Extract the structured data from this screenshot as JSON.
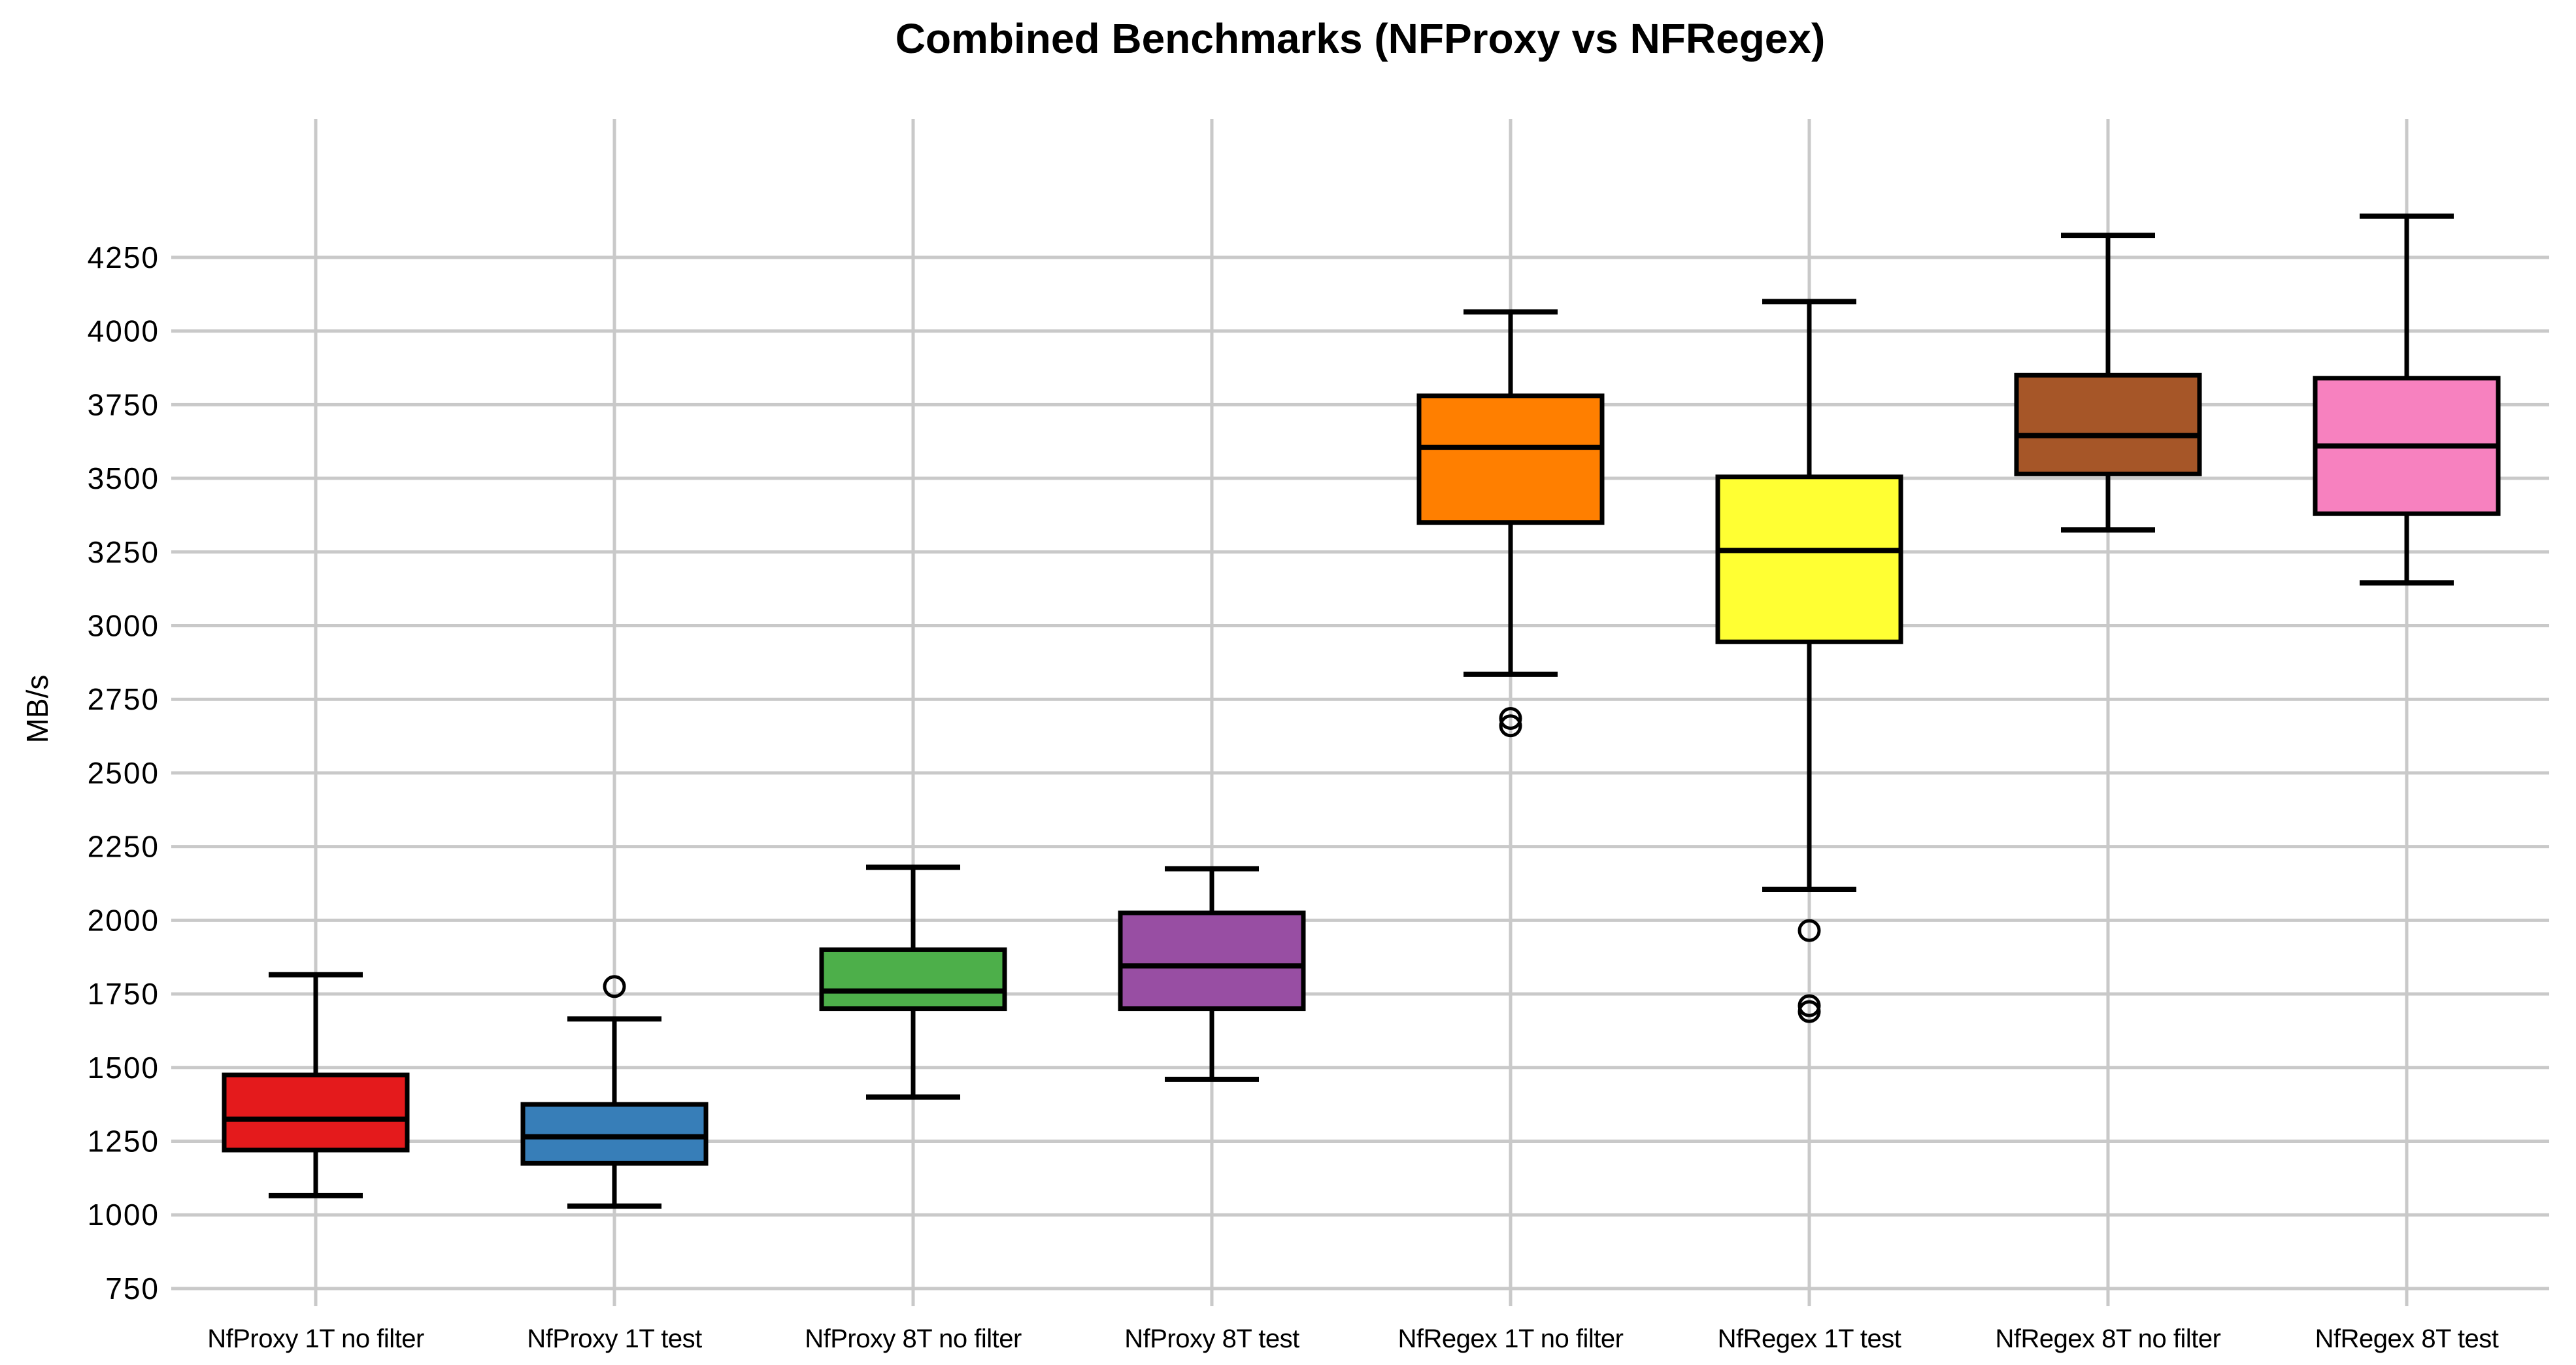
{
  "title": "Combined Benchmarks (NFProxy vs NFRegex)",
  "y_axis": {
    "label": "MB/s",
    "tick_labels": [
      "750",
      "1000",
      "1250",
      "1500",
      "1750",
      "2000",
      "2250",
      "2500",
      "2750",
      "3000",
      "3250",
      "3500",
      "3750",
      "4000",
      "4250"
    ]
  },
  "chart_data": {
    "type": "boxplot",
    "title": "Combined Benchmarks (NFProxy vs NFRegex)",
    "xlabel": "",
    "ylabel": "MB/s",
    "grid": true,
    "legend": false,
    "grid_color": "#c9c9c9",
    "box_border_color": "#000000",
    "ylim": [
      690,
      4720
    ],
    "yticks": [
      750,
      1000,
      1250,
      1500,
      1750,
      2000,
      2250,
      2500,
      2750,
      3000,
      3250,
      3500,
      3750,
      4000,
      4250
    ],
    "categories": [
      "NfProxy 1T no filter",
      "NfProxy 1T test",
      "NfProxy 8T no filter",
      "NfProxy 8T test",
      "NfRegex 1T no filter",
      "NfRegex 1T test",
      "NfRegex 8T no filter",
      "NfRegex 8T test"
    ],
    "series": [
      {
        "name": "NfProxy 1T no filter",
        "color": "#e41a1c",
        "whisker_low": 1065,
        "q1": 1220,
        "median": 1325,
        "q3": 1475,
        "whisker_high": 1815,
        "outliers": []
      },
      {
        "name": "NfProxy 1T test",
        "color": "#377eb8",
        "whisker_low": 1030,
        "q1": 1175,
        "median": 1265,
        "q3": 1375,
        "whisker_high": 1665,
        "outliers": [
          1775
        ]
      },
      {
        "name": "NfProxy 8T no filter",
        "color": "#4daf4a",
        "whisker_low": 1400,
        "q1": 1700,
        "median": 1760,
        "q3": 1900,
        "whisker_high": 2180,
        "outliers": []
      },
      {
        "name": "NfProxy 8T test",
        "color": "#984ea3",
        "whisker_low": 1460,
        "q1": 1700,
        "median": 1845,
        "q3": 2025,
        "whisker_high": 2175,
        "outliers": []
      },
      {
        "name": "NfRegex 1T no filter",
        "color": "#ff7f00",
        "whisker_low": 2835,
        "q1": 3350,
        "median": 3605,
        "q3": 3780,
        "whisker_high": 4065,
        "outliers": [
          2685,
          2660
        ]
      },
      {
        "name": "NfRegex 1T test",
        "color": "#ffff33",
        "whisker_low": 2105,
        "q1": 2945,
        "median": 3255,
        "q3": 3505,
        "whisker_high": 4100,
        "outliers": [
          1965,
          1710,
          1690
        ]
      },
      {
        "name": "NfRegex 8T no filter",
        "color": "#a65628",
        "whisker_low": 3325,
        "q1": 3515,
        "median": 3645,
        "q3": 3850,
        "whisker_high": 4325,
        "outliers": []
      },
      {
        "name": "NfRegex 8T test",
        "color": "#f781bf",
        "whisker_low": 3145,
        "q1": 3380,
        "median": 3610,
        "q3": 3840,
        "whisker_high": 4390,
        "outliers": []
      }
    ]
  }
}
